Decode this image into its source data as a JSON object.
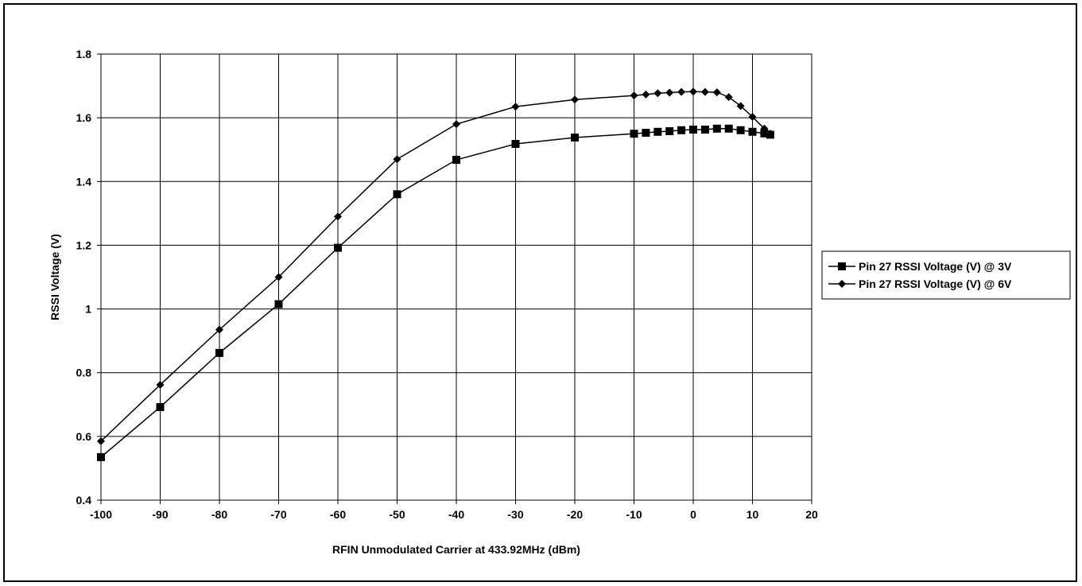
{
  "chart_data": {
    "type": "line",
    "title": "",
    "xlabel": "RFIN Unmodulated Carrier at 433.92MHz (dBm)",
    "ylabel": "RSSI Voltage (V)",
    "xlim": [
      -100,
      20
    ],
    "ylim": [
      0.4,
      1.8
    ],
    "xticks": [
      "-100",
      "-90",
      "-80",
      "-70",
      "-60",
      "-50",
      "-40",
      "-30",
      "-20",
      "-10",
      "0",
      "10",
      "20"
    ],
    "yticks": [
      "0.4",
      "0.6",
      "0.8",
      "1",
      "1.2",
      "1.4",
      "1.6",
      "1.8"
    ],
    "grid": true,
    "legend_position": "right",
    "series": [
      {
        "name": "Pin 27 RSSI Voltage (V) @ 3V",
        "marker": "square",
        "color": "#000000",
        "x": [
          -100,
          -90,
          -80,
          -70,
          -60,
          -50,
          -40,
          -30,
          -20,
          -10,
          -8,
          -6,
          -4,
          -2,
          0,
          2,
          4,
          6,
          8,
          10,
          12,
          13
        ],
        "y": [
          0.535,
          0.692,
          0.862,
          1.015,
          1.192,
          1.36,
          1.468,
          1.518,
          1.538,
          1.55,
          1.553,
          1.556,
          1.558,
          1.561,
          1.563,
          1.563,
          1.566,
          1.566,
          1.561,
          1.556,
          1.551,
          1.547
        ]
      },
      {
        "name": "Pin 27 RSSI Voltage (V) @ 6V",
        "marker": "diamond",
        "color": "#000000",
        "x": [
          -100,
          -90,
          -80,
          -70,
          -60,
          -50,
          -40,
          -30,
          -20,
          -10,
          -8,
          -6,
          -4,
          -2,
          0,
          2,
          4,
          6,
          8,
          10,
          12,
          13
        ],
        "y": [
          0.585,
          0.762,
          0.935,
          1.1,
          1.29,
          1.47,
          1.58,
          1.635,
          1.657,
          1.67,
          1.673,
          1.677,
          1.679,
          1.681,
          1.682,
          1.681,
          1.68,
          1.665,
          1.637,
          1.603,
          1.566,
          1.55
        ]
      }
    ]
  }
}
